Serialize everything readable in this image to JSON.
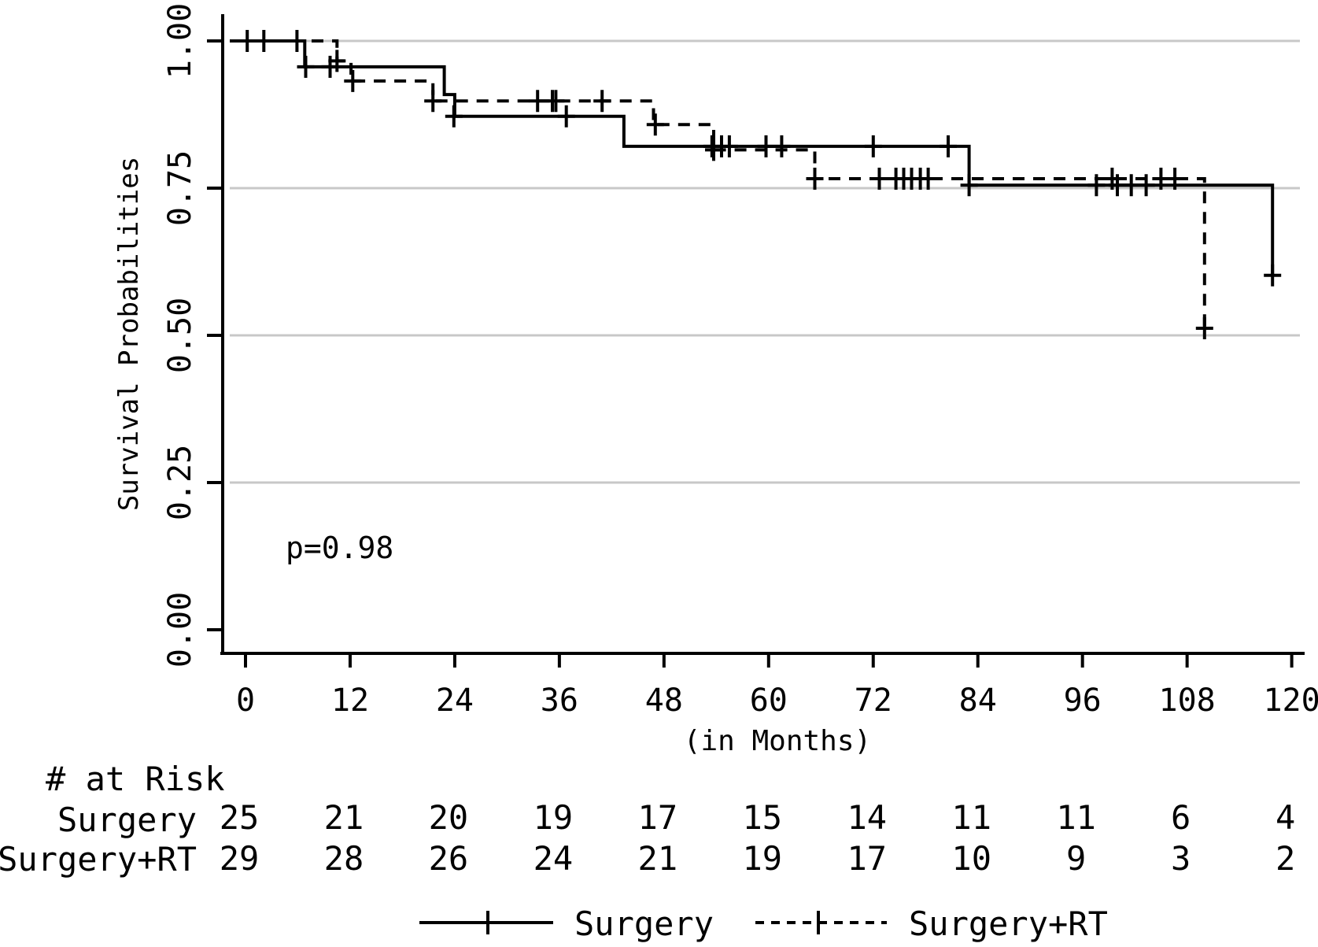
{
  "chart_data": {
    "type": "line",
    "subtype": "kaplan-meier-step",
    "title": "",
    "xlabel": "(in Months)",
    "ylabel": "Survival Probabilities",
    "annotation": "p=0.98",
    "xlim": [
      0,
      120
    ],
    "ylim": [
      0.0,
      1.0
    ],
    "grid": "horizontal-light-gray",
    "legend_position": "bottom",
    "x_ticks": [
      0,
      12,
      24,
      36,
      48,
      60,
      72,
      84,
      96,
      108,
      120
    ],
    "y_ticks": [
      {
        "value": 1.0,
        "label": "1.00",
        "grid": true
      },
      {
        "value": 0.75,
        "label": "0.75",
        "grid": true
      },
      {
        "value": 0.5,
        "label": "0.50",
        "grid": true
      },
      {
        "value": 0.25,
        "label": "0.25",
        "grid": true
      },
      {
        "value": 0.0,
        "label": "0.00",
        "grid": false
      }
    ],
    "series": [
      {
        "name": "Surgery",
        "style": "solid",
        "steps": [
          [
            0,
            1.0
          ],
          [
            6.8,
            1.0
          ],
          [
            6.8,
            0.956
          ],
          [
            22.8,
            0.956
          ],
          [
            22.8,
            0.909
          ],
          [
            24.0,
            0.909
          ],
          [
            24.0,
            0.872
          ],
          [
            43.4,
            0.872
          ],
          [
            43.4,
            0.821
          ],
          [
            83.0,
            0.821
          ],
          [
            83.0,
            0.755
          ],
          [
            117.8,
            0.755
          ],
          [
            117.8,
            0.602
          ]
        ],
        "censors": [
          [
            0.2,
            1.0
          ],
          [
            2.1,
            1.0
          ],
          [
            5.9,
            1.0
          ],
          [
            6.9,
            0.956
          ],
          [
            9.7,
            0.956
          ],
          [
            23.9,
            0.872
          ],
          [
            36.8,
            0.872
          ],
          [
            53.5,
            0.821
          ],
          [
            54.6,
            0.821
          ],
          [
            55.5,
            0.821
          ],
          [
            59.7,
            0.821
          ],
          [
            61.5,
            0.821
          ],
          [
            72.0,
            0.821
          ],
          [
            80.6,
            0.821
          ],
          [
            83.0,
            0.755
          ],
          [
            97.6,
            0.755
          ],
          [
            100.0,
            0.755
          ],
          [
            101.6,
            0.755
          ],
          [
            103.3,
            0.755
          ],
          [
            117.8,
            0.602
          ]
        ]
      },
      {
        "name": "Surgery+RT",
        "style": "dashed",
        "steps": [
          [
            0,
            1.0
          ],
          [
            10.5,
            1.0
          ],
          [
            10.5,
            0.966
          ],
          [
            12.1,
            0.966
          ],
          [
            12.1,
            0.932
          ],
          [
            21.5,
            0.932
          ],
          [
            21.5,
            0.898
          ],
          [
            46.8,
            0.898
          ],
          [
            46.8,
            0.858
          ],
          [
            53.7,
            0.858
          ],
          [
            53.7,
            0.815
          ],
          [
            65.3,
            0.815
          ],
          [
            65.3,
            0.766
          ],
          [
            110.0,
            0.766
          ],
          [
            110.0,
            0.512
          ]
        ],
        "censors": [
          [
            10.5,
            0.966
          ],
          [
            12.3,
            0.932
          ],
          [
            21.5,
            0.898
          ],
          [
            33.5,
            0.898
          ],
          [
            35.2,
            0.898
          ],
          [
            35.6,
            0.898
          ],
          [
            40.9,
            0.898
          ],
          [
            47.0,
            0.858
          ],
          [
            53.7,
            0.815
          ],
          [
            65.3,
            0.766
          ],
          [
            72.7,
            0.766
          ],
          [
            74.6,
            0.766
          ],
          [
            75.5,
            0.766
          ],
          [
            76.4,
            0.766
          ],
          [
            77.4,
            0.766
          ],
          [
            78.3,
            0.766
          ],
          [
            99.4,
            0.766
          ],
          [
            105.0,
            0.766
          ],
          [
            106.6,
            0.766
          ],
          [
            110.0,
            0.512
          ]
        ]
      }
    ],
    "colors": {
      "curves": "#000000",
      "grid": "#c8c8c8",
      "background": "#ffffff"
    }
  },
  "risk_table": {
    "title": "# at Risk",
    "times": [
      0,
      12,
      24,
      36,
      48,
      60,
      72,
      84,
      96,
      108,
      120
    ],
    "rows": [
      {
        "label": "Surgery",
        "counts": [
          25,
          21,
          20,
          19,
          17,
          15,
          14,
          11,
          11,
          6,
          4
        ]
      },
      {
        "label": "Surgery+RT",
        "counts": [
          29,
          28,
          26,
          24,
          21,
          19,
          17,
          10,
          9,
          3,
          2
        ]
      }
    ]
  },
  "legend": {
    "items": [
      {
        "label": "Surgery",
        "style": "solid"
      },
      {
        "label": "Surgery+RT",
        "style": "dashed"
      }
    ]
  }
}
